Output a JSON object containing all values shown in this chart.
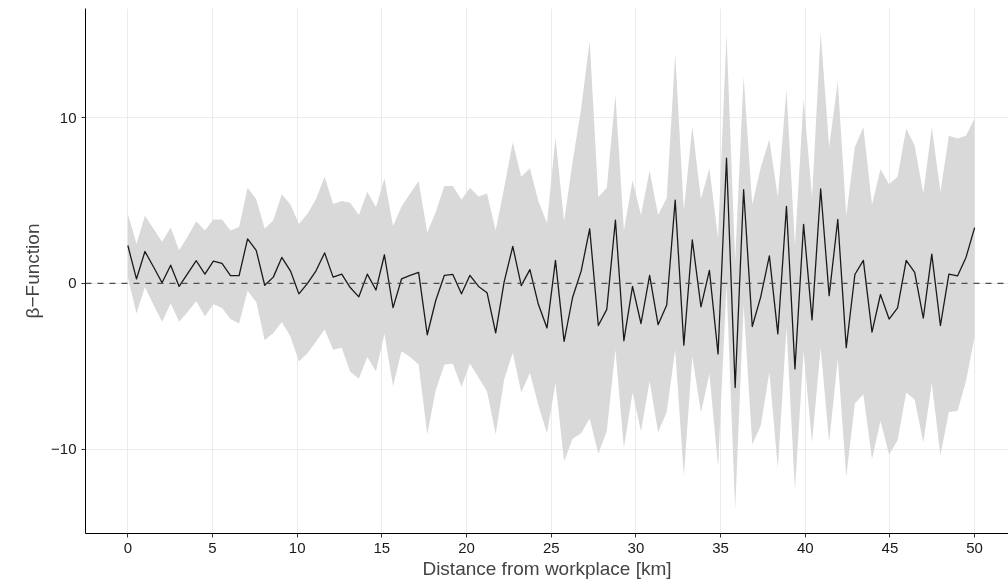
{
  "chart_data": {
    "type": "line",
    "xlabel": "Distance from workplace [km]",
    "ylabel": "β−Function",
    "x": [
      0,
      0.51,
      1.01,
      1.52,
      2.02,
      2.53,
      3.03,
      3.54,
      4.04,
      4.55,
      5.05,
      5.56,
      6.06,
      6.57,
      7.07,
      7.58,
      8.08,
      8.59,
      9.09,
      9.6,
      10.1,
      10.61,
      11.11,
      11.62,
      12.12,
      12.63,
      13.13,
      13.64,
      14.14,
      14.65,
      15.15,
      15.66,
      16.16,
      16.67,
      17.17,
      17.68,
      18.18,
      18.69,
      19.19,
      19.7,
      20.2,
      20.71,
      21.21,
      21.72,
      22.22,
      22.73,
      23.23,
      23.74,
      24.24,
      24.75,
      25.25,
      25.76,
      26.26,
      26.77,
      27.27,
      27.78,
      28.28,
      28.79,
      29.29,
      29.8,
      30.3,
      30.81,
      31.31,
      31.82,
      32.32,
      32.83,
      33.33,
      33.84,
      34.34,
      34.85,
      35.35,
      35.86,
      36.36,
      36.87,
      37.37,
      37.88,
      38.38,
      38.89,
      39.39,
      39.9,
      40.4,
      40.91,
      41.41,
      41.92,
      42.42,
      42.93,
      43.43,
      43.94,
      44.44,
      44.95,
      45.45,
      45.96,
      46.46,
      46.97,
      47.47,
      47.98,
      48.48,
      48.99,
      49.49,
      50
    ],
    "series": [
      {
        "color": "#1a1a1a",
        "values": [
          2.29,
          0.27,
          1.93,
          0.99,
          0.04,
          1.1,
          -0.18,
          0.61,
          1.37,
          0.56,
          1.35,
          1.21,
          0.47,
          0.47,
          2.69,
          2.0,
          -0.11,
          0.38,
          1.57,
          0.76,
          -0.63,
          0,
          0.76,
          1.84,
          0.38,
          0.56,
          -0.25,
          -0.81,
          0.56,
          -0.4,
          1.73,
          -1.46,
          0.27,
          0.49,
          0.67,
          -3.1,
          -1.03,
          0.49,
          0.54,
          -0.63,
          0.49,
          -0.18,
          -0.56,
          -2.99,
          0.09,
          2.24,
          -0.13,
          0.83,
          -1.26,
          -2.69,
          1.39,
          -3.5,
          -0.85,
          0.76,
          3.3,
          -2.54,
          -1.57,
          3.82,
          -3.46,
          -0.18,
          -2.42,
          0.49,
          -2.49,
          -1.3,
          5.03,
          -3.73,
          2.63,
          -1.41,
          0.79,
          -4.26,
          7.56,
          -6.29,
          5.66,
          -2.6,
          -0.81,
          1.66,
          -3.05,
          4.65,
          -5.16,
          3.57,
          -2.2,
          5.7,
          -0.74,
          3.86,
          -3.88,
          0.54,
          1.39,
          -2.94,
          -0.67,
          -2.15,
          -1.48,
          1.39,
          0.67,
          -2.09,
          1.77,
          -2.54,
          0.56,
          0.45,
          1.57,
          3.37
        ],
        "upper": [
          4.2,
          2.4,
          4.09,
          3.3,
          2.51,
          3.37,
          2.0,
          2.85,
          3.75,
          3.19,
          3.86,
          3.86,
          3.19,
          3.41,
          5.77,
          5.1,
          3.3,
          3.82,
          5.39,
          4.76,
          3.59,
          4.2,
          5.1,
          6.44,
          4.8,
          4.98,
          4.87,
          4.13,
          5.54,
          4.6,
          6.33,
          3.46,
          4.65,
          5.43,
          6.17,
          3.08,
          4.31,
          5.88,
          5.88,
          5.05,
          5.77,
          5.25,
          5.43,
          3.19,
          5.77,
          8.53,
          6.44,
          6.96,
          4.98,
          3.64,
          8.8,
          3.75,
          7.34,
          10.59,
          14.64,
          5.21,
          5.77,
          11.38,
          3.19,
          6.22,
          4.13,
          6.82,
          4.13,
          5.16,
          13.85,
          4.42,
          9.47,
          5.1,
          6.96,
          2.74,
          15.04,
          1.39,
          12.5,
          4.76,
          7.0,
          8.69,
          5.21,
          11.72,
          2.29,
          11.16,
          5.21,
          15.13,
          8.24,
          12.21,
          4.09,
          8.24,
          9.43,
          4.76,
          6.89,
          5.99,
          6.44,
          9.36,
          8.31,
          5.43,
          9.43,
          5.54,
          8.91,
          8.75,
          8.91,
          9.97
        ],
        "lower": [
          0.38,
          -1.82,
          -0.22,
          -1.3,
          -2.31,
          -1.21,
          -2.31,
          -1.71,
          -1.08,
          -1.98,
          -1.26,
          -1.48,
          -2.15,
          -2.42,
          -0.45,
          -1.12,
          -3.43,
          -2.99,
          -2.33,
          -3.21,
          -4.71,
          -4.22,
          -3.5,
          -2.78,
          -4.0,
          -3.88,
          -5.34,
          -5.75,
          -4.44,
          -5.3,
          -3.05,
          -6.2,
          -4.1,
          -4.44,
          -4.89,
          -9.11,
          -6.46,
          -4.89,
          -4.85,
          -6.24,
          -4.85,
          -5.68,
          -6.53,
          -9.11,
          -5.8,
          -4.18,
          -6.58,
          -5.41,
          -7.36,
          -9.05,
          -6.02,
          -10.73,
          -9.38,
          -9.05,
          -8.15,
          -10.28,
          -8.93,
          -4.0,
          -9.94,
          -6.58,
          -8.93,
          -5.9,
          -8.98,
          -7.77,
          -4.0,
          -11.63,
          -4.4,
          -7.81,
          -5.45,
          -11.07,
          -0.07,
          -13.65,
          -1.3,
          -9.72,
          -8.6,
          -5.37,
          -11.18,
          -2.65,
          -12.48,
          -4.11,
          -9.61,
          -3.88,
          -9.61,
          -4.56,
          -11.67,
          -7.25,
          -6.69,
          -10.62,
          -8.31,
          -10.33,
          -9.49,
          -6.58,
          -7.03,
          -9.61,
          -6.02,
          -10.39,
          -7.77,
          -7.7,
          -5.9,
          -3.21
        ]
      }
    ],
    "xlim": [
      -2.5,
      52.0
    ],
    "ylim": [
      -15.1,
      16.6
    ],
    "xticks": [
      0,
      5,
      10,
      15,
      20,
      25,
      30,
      35,
      40,
      45,
      50
    ],
    "yticks": [
      {
        "value": -10,
        "label": "−10"
      },
      0,
      10
    ],
    "ref_lines": [
      {
        "axis": "y",
        "value": 0,
        "color": "#4d4d4d",
        "line_style": "dashed"
      }
    ],
    "grid": true,
    "line_style": "solid",
    "marker": "none"
  }
}
